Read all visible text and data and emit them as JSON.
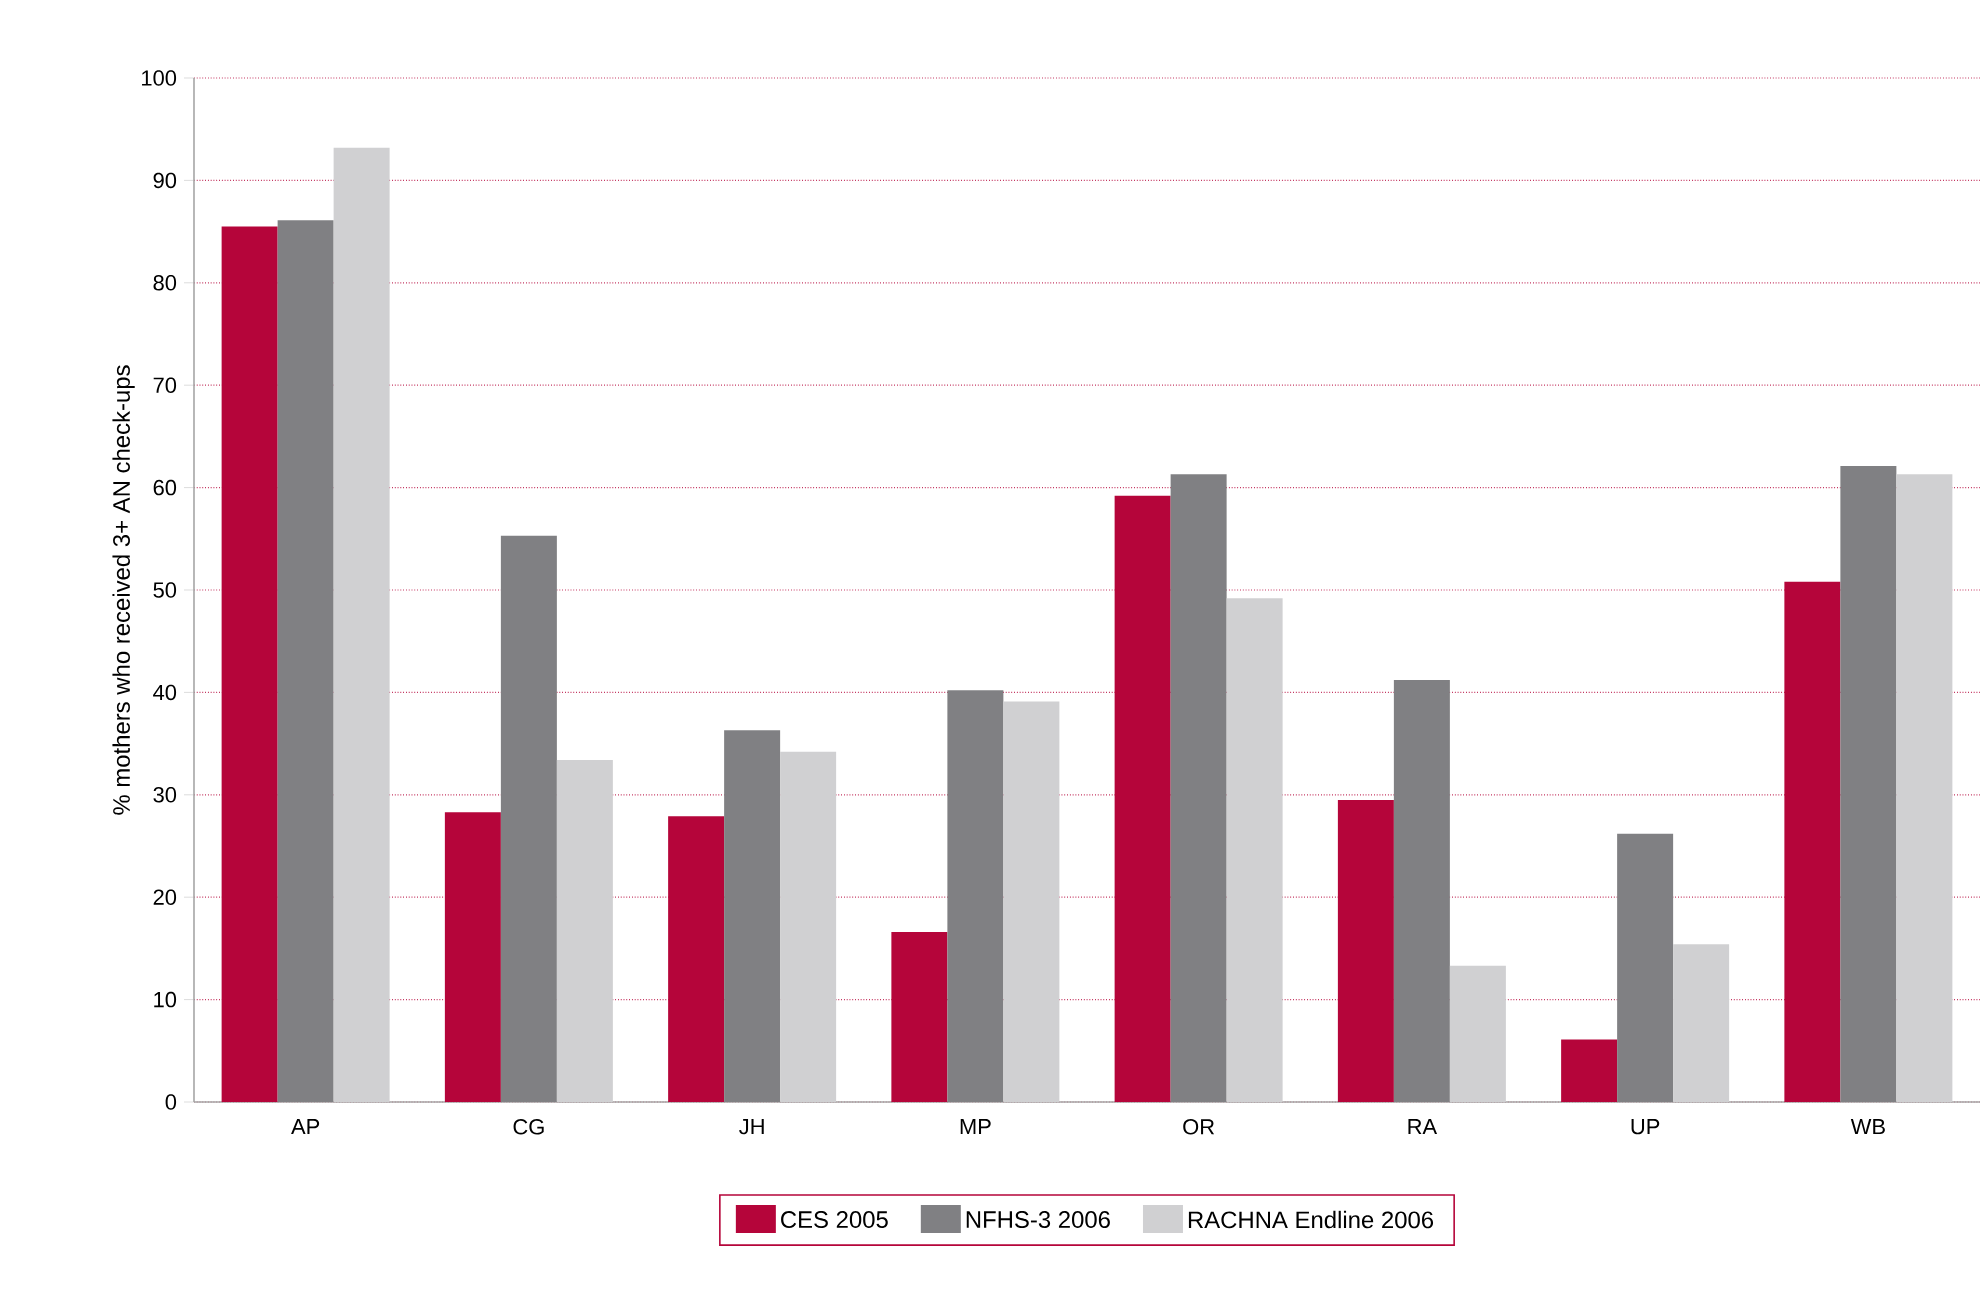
{
  "chart_data": {
    "type": "bar",
    "ylabel": "% mothers who received 3+ AN check-ups",
    "categories": [
      "AP",
      "CG",
      "JH",
      "MP",
      "OR",
      "RA",
      "UP",
      "WB"
    ],
    "series": [
      {
        "name": "CES 2005",
        "color": "#b5053a",
        "values": [
          85.5,
          28.3,
          27.9,
          16.6,
          59.2,
          29.5,
          6.1,
          50.8
        ]
      },
      {
        "name": "NFHS-3 2006",
        "color": "#808083",
        "values": [
          86.1,
          55.3,
          36.3,
          40.2,
          61.3,
          41.2,
          26.2,
          62.1
        ]
      },
      {
        "name": "RACHNA Endline 2006",
        "color": "#d0d0d2",
        "values": [
          93.2,
          33.4,
          34.2,
          39.1,
          49.2,
          13.3,
          15.4,
          61.3
        ]
      }
    ],
    "ylim": [
      0,
      100
    ],
    "yticks": [
      0,
      10,
      20,
      30,
      40,
      50,
      60,
      70,
      80,
      90,
      100
    ],
    "grid": "y",
    "legend": "bottom"
  }
}
